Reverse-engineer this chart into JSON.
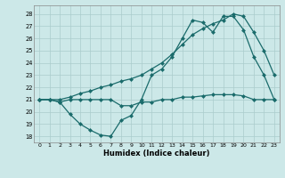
{
  "xlabel": "Humidex (Indice chaleur)",
  "bg_color": "#cce8e8",
  "line_color": "#1a6b6b",
  "grid_color": "#aacccc",
  "xlim": [
    -0.5,
    23.5
  ],
  "ylim": [
    17.5,
    28.7
  ],
  "yticks": [
    18,
    19,
    20,
    21,
    22,
    23,
    24,
    25,
    26,
    27,
    28
  ],
  "xticks": [
    0,
    1,
    2,
    3,
    4,
    5,
    6,
    7,
    8,
    9,
    10,
    11,
    12,
    13,
    14,
    15,
    16,
    17,
    18,
    19,
    20,
    21,
    22,
    23
  ],
  "series1_x": [
    0,
    1,
    2,
    3,
    4,
    5,
    6,
    7,
    8,
    9,
    10,
    11,
    12,
    13,
    14,
    15,
    16,
    17,
    18,
    19,
    20,
    21,
    22,
    23
  ],
  "series1_y": [
    21.0,
    21.0,
    20.8,
    21.0,
    21.0,
    21.0,
    21.0,
    21.0,
    20.5,
    20.5,
    20.8,
    20.8,
    21.0,
    21.0,
    21.2,
    21.2,
    21.3,
    21.4,
    21.4,
    21.4,
    21.3,
    21.0,
    21.0,
    21.0
  ],
  "series2_x": [
    0,
    1,
    2,
    3,
    4,
    5,
    6,
    7,
    8,
    9,
    10,
    11,
    12,
    13,
    14,
    15,
    16,
    17,
    18,
    19,
    20,
    21,
    22,
    23
  ],
  "series2_y": [
    21.0,
    21.0,
    20.8,
    19.8,
    19.0,
    18.5,
    18.1,
    18.0,
    19.3,
    19.7,
    21.0,
    23.0,
    23.5,
    24.5,
    26.0,
    27.5,
    27.3,
    26.5,
    27.8,
    27.8,
    26.7,
    24.5,
    23.0,
    21.0
  ],
  "series3_x": [
    0,
    1,
    2,
    3,
    4,
    5,
    6,
    7,
    8,
    9,
    10,
    11,
    12,
    13,
    14,
    15,
    16,
    17,
    18,
    19,
    20,
    21,
    22,
    23
  ],
  "series3_y": [
    21.0,
    21.0,
    21.0,
    21.2,
    21.5,
    21.7,
    22.0,
    22.2,
    22.5,
    22.7,
    23.0,
    23.5,
    24.0,
    24.7,
    25.5,
    26.3,
    26.8,
    27.2,
    27.5,
    28.0,
    27.8,
    26.5,
    25.0,
    23.0
  ]
}
